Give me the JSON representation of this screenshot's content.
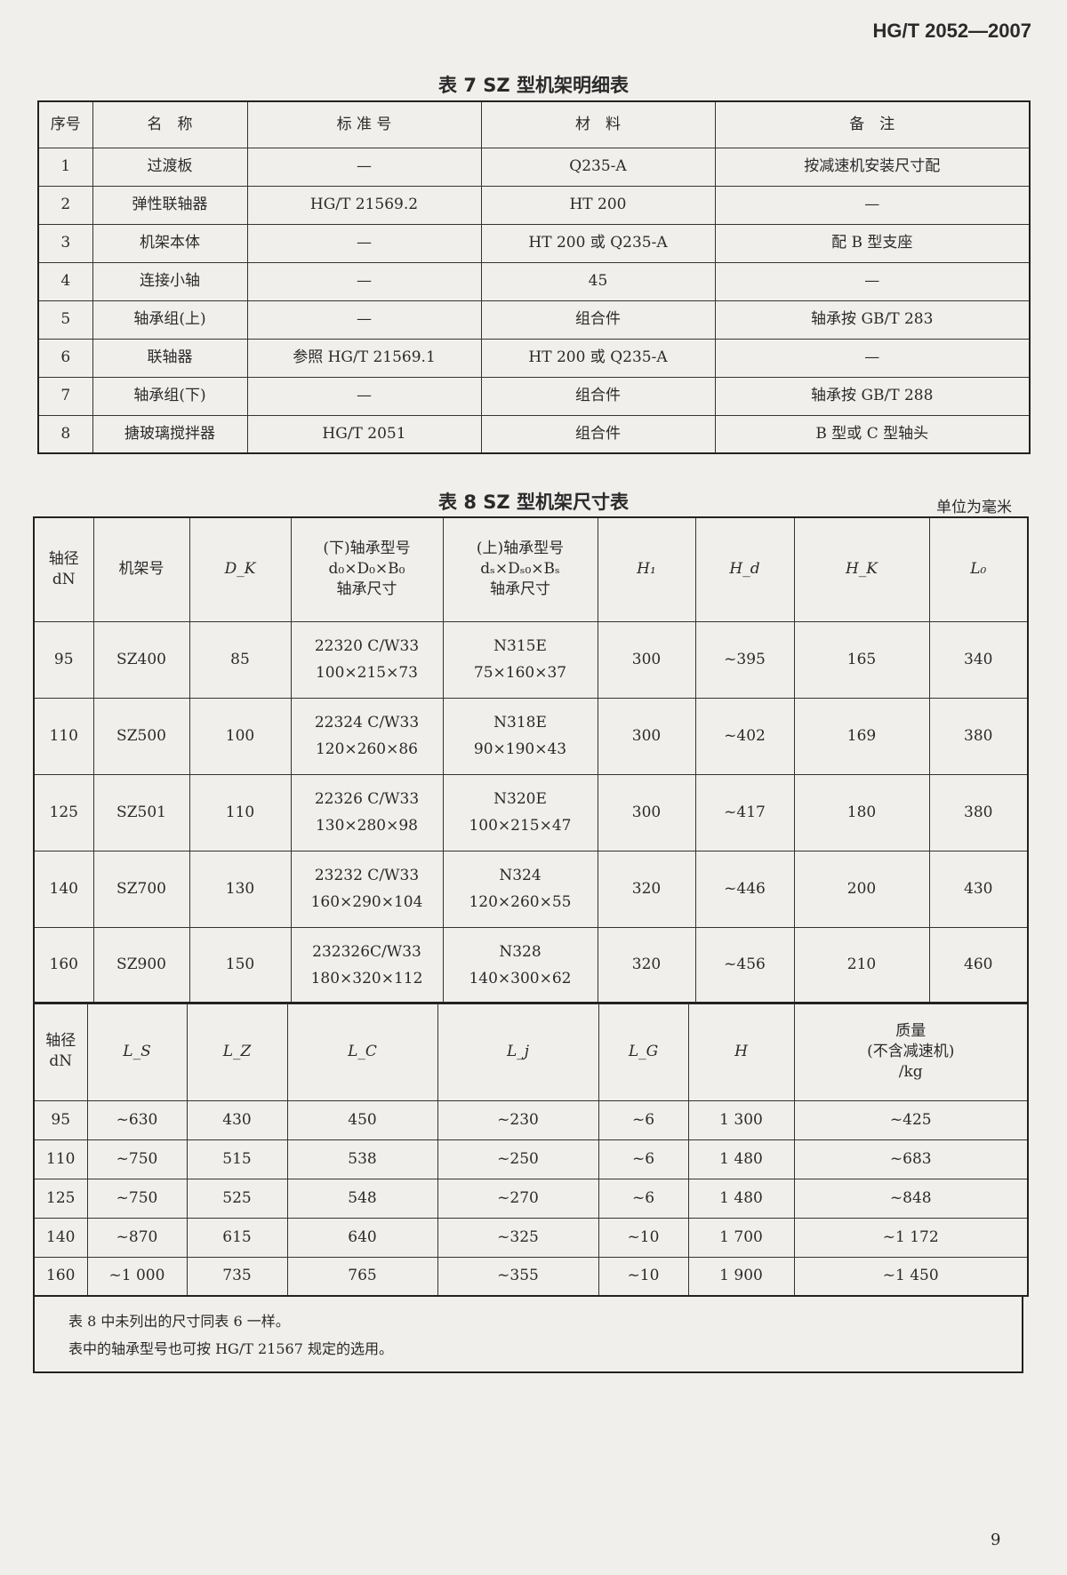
{
  "header": {
    "standard_code": "HG/T 2052—2007"
  },
  "table7": {
    "title": "表 7  SZ 型机架明细表",
    "columns": [
      "序号",
      "名　称",
      "标 准 号",
      "材　料",
      "备　注"
    ],
    "rows": [
      [
        "1",
        "过渡板",
        "—",
        "Q235-A",
        "按减速机安装尺寸配"
      ],
      [
        "2",
        "弹性联轴器",
        "HG/T 21569.2",
        "HT 200",
        "—"
      ],
      [
        "3",
        "机架本体",
        "—",
        "HT 200 或 Q235-A",
        "配 B 型支座"
      ],
      [
        "4",
        "连接小轴",
        "—",
        "45",
        "—"
      ],
      [
        "5",
        "轴承组(上)",
        "—",
        "组合件",
        "轴承按 GB/T 283"
      ],
      [
        "6",
        "联轴器",
        "参照 HG/T 21569.1",
        "HT 200 或 Q235-A",
        "—"
      ],
      [
        "7",
        "轴承组(下)",
        "—",
        "组合件",
        "轴承按 GB/T 288"
      ],
      [
        "8",
        "搪玻璃搅拌器",
        "HG/T 2051",
        "组合件",
        "B 型或 C 型轴头"
      ]
    ]
  },
  "table8": {
    "title": "表 8  SZ 型机架尺寸表",
    "unit": "单位为毫米",
    "upper_columns": [
      [
        "轴径",
        "dN"
      ],
      [
        "机架号"
      ],
      [
        "D_K"
      ],
      [
        "(下)轴承型号",
        "d₀×D₀×B₀",
        "轴承尺寸"
      ],
      [
        "(上)轴承型号",
        "dₛ×Dₛ₀×Bₛ",
        "轴承尺寸"
      ],
      [
        "H₁"
      ],
      [
        "H_d"
      ],
      [
        "H_K"
      ],
      [
        "L₀"
      ]
    ],
    "upper_rows": [
      [
        "95",
        "SZ400",
        "85",
        "22320 C/W33",
        "100×215×73",
        "N315E",
        "75×160×37",
        "300",
        "~395",
        "165",
        "340"
      ],
      [
        "110",
        "SZ500",
        "100",
        "22324 C/W33",
        "120×260×86",
        "N318E",
        "90×190×43",
        "300",
        "~402",
        "169",
        "380"
      ],
      [
        "125",
        "SZ501",
        "110",
        "22326 C/W33",
        "130×280×98",
        "N320E",
        "100×215×47",
        "300",
        "~417",
        "180",
        "380"
      ],
      [
        "140",
        "SZ700",
        "130",
        "23232 C/W33",
        "160×290×104",
        "N324",
        "120×260×55",
        "320",
        "~446",
        "200",
        "430"
      ],
      [
        "160",
        "SZ900",
        "150",
        "232326C/W33",
        "180×320×112",
        "N328",
        "140×300×62",
        "320",
        "~456",
        "210",
        "460"
      ]
    ],
    "lower_columns": [
      [
        "轴径",
        "dN"
      ],
      [
        "L_S"
      ],
      [
        "L_Z"
      ],
      [
        "L_C"
      ],
      [
        "L_j"
      ],
      [
        "L_G"
      ],
      [
        "H"
      ],
      [
        "质量",
        "(不含减速机)",
        "/kg"
      ]
    ],
    "lower_rows": [
      [
        "95",
        "~630",
        "430",
        "450",
        "~230",
        "~6",
        "1 300",
        "~425"
      ],
      [
        "110",
        "~750",
        "515",
        "538",
        "~250",
        "~6",
        "1 480",
        "~683"
      ],
      [
        "125",
        "~750",
        "525",
        "548",
        "~270",
        "~6",
        "1 480",
        "~848"
      ],
      [
        "140",
        "~870",
        "615",
        "640",
        "~325",
        "~10",
        "1 700",
        "~1 172"
      ],
      [
        "160",
        "~1 000",
        "735",
        "765",
        "~355",
        "~10",
        "1 900",
        "~1 450"
      ]
    ],
    "notes": [
      "表 8 中未列出的尺寸同表 6 一样。",
      "表中的轴承型号也可按 HG/T 21567 规定的选用。"
    ]
  },
  "footer": {
    "page_number": "9"
  }
}
